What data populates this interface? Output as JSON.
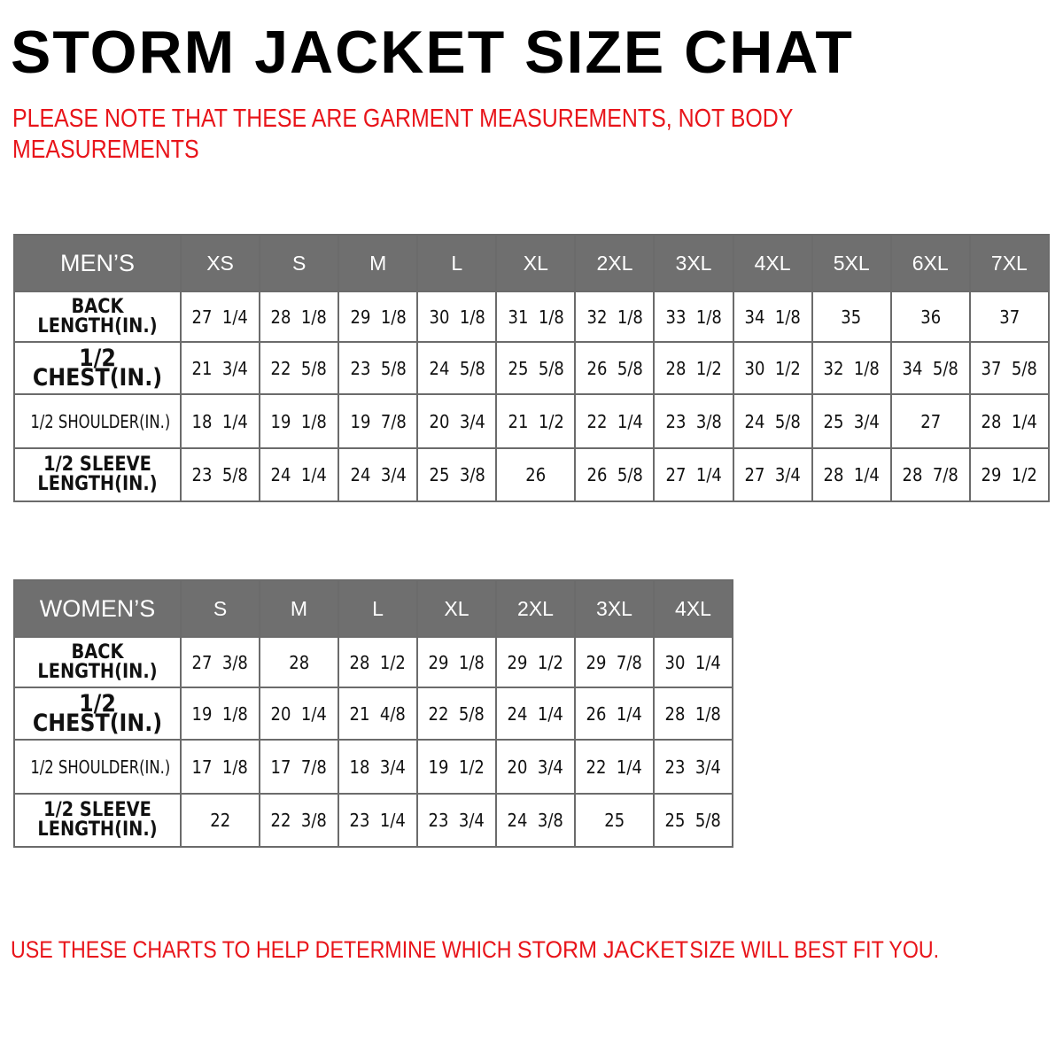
{
  "title": "STORM JACKET SIZE CHAT",
  "note": "PLEASE NOTE THAT THESE ARE GARMENT MEASUREMENTS, NOT BODY MEASUREMENTS",
  "colors": {
    "header_bg": "#6f6f6f",
    "accent_red": "#e8141a",
    "border": "#6b6b6b"
  },
  "mens": {
    "header": "MEN’S",
    "sizes": [
      "XS",
      "S",
      "M",
      "L",
      "XL",
      "2XL",
      "3XL",
      "4XL",
      "5XL",
      "6XL",
      "7XL"
    ],
    "rows": [
      {
        "label": "BACK LENGTH(IN.)",
        "values": [
          "27  1/4",
          "28  1/8",
          "29  1/8",
          "30  1/8",
          "31  1/8",
          "32  1/8",
          "33  1/8",
          "34  1/8",
          "35",
          "36",
          "37"
        ]
      },
      {
        "label": "1/2  CHEST(IN.)",
        "values": [
          "21  3/4",
          "22  5/8",
          "23  5/8",
          "24  5/8",
          "25  5/8",
          "26  5/8",
          "28  1/2",
          "30  1/2",
          "32  1/8",
          "34  5/8",
          "37  5/8"
        ]
      },
      {
        "label": "1/2  SHOULDER(IN.)",
        "values": [
          "18  1/4",
          "19  1/8",
          "19  7/8",
          "20  3/4",
          "21  1/2",
          "22  1/4",
          "23  3/8",
          "24  5/8",
          "25  3/4",
          "27",
          "28  1/4"
        ]
      },
      {
        "label": "1/2  SLEEVE LENGTH(IN.)",
        "values": [
          "23  5/8",
          "24  1/4",
          "24  3/4",
          "25  3/8",
          "26",
          "26  5/8",
          "27  1/4",
          "27  3/4",
          "28  1/4",
          "28  7/8",
          "29  1/2"
        ]
      }
    ]
  },
  "womens": {
    "header": "WOMEN’S",
    "sizes": [
      "S",
      "M",
      "L",
      "XL",
      "2XL",
      "3XL",
      "4XL"
    ],
    "rows": [
      {
        "label": "BACK LENGTH(IN.)",
        "values": [
          "27  3/8",
          "28",
          "28  1/2",
          "29  1/8",
          "29  1/2",
          "29  7/8",
          "30  1/4"
        ]
      },
      {
        "label": "1/2  CHEST(IN.)",
        "values": [
          "19  1/8",
          "20  1/4",
          "21  4/8",
          "22  5/8",
          "24  1/4",
          "26  1/4",
          "28  1/8"
        ]
      },
      {
        "label": "1/2  SHOULDER(IN.)",
        "values": [
          "17  1/8",
          "17  7/8",
          "18  3/4",
          "19  1/2",
          "20  3/4",
          "22  1/4",
          "23  3/4"
        ]
      },
      {
        "label": "1/2  SLEEVE LENGTH(IN.)",
        "values": [
          "22",
          "22  3/8",
          "23  1/4",
          "23  3/4",
          "24  3/8",
          "25",
          "25  5/8"
        ]
      }
    ]
  },
  "footer": {
    "prefix": "USE THESE CHARTS TO HELP DETERMINE WHICH ",
    "brand": "STORM JACKET",
    "suffix": "SIZE WILL BEST FIT YOU."
  }
}
